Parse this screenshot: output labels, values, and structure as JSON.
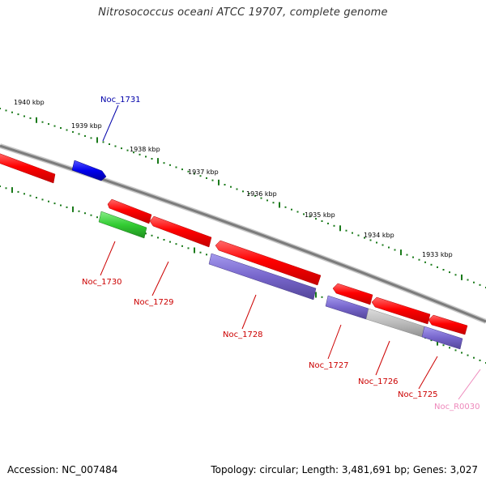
{
  "title": "Nitrosococcus oceani ATCC 19707, complete genome",
  "footer": {
    "accession": "Accession: NC_007484",
    "summary": "Topology: circular; Length: 3,481,691 bp; Genes: 3,027"
  },
  "colors": {
    "backbone": "#808080",
    "tick": "#1a7a1a",
    "cds": "#ff0000",
    "cds_edge": "#b00000",
    "forward_highlight": "#0000ee",
    "rna": "#33cc33",
    "cog": "#7766cc",
    "pseudo": "#bbbbbb",
    "label_red": "#cc0000",
    "label_blue": "#0000aa",
    "label_pink": "#ee88bb"
  },
  "scale_labels": [
    "1940 kbp",
    "1939 kbp",
    "1938 kbp",
    "1937 kbp",
    "1936 kbp",
    "1935 kbp",
    "1934 kbp",
    "1933 kbp"
  ],
  "features": [
    {
      "name": "Noc_1731",
      "type": "cds",
      "strand": "+",
      "color": "blue"
    },
    {
      "name": "Noc_1730",
      "type": "rna",
      "strand": "-",
      "color": "red"
    },
    {
      "name": "Noc_1729",
      "type": "cds",
      "strand": "-",
      "color": "red"
    },
    {
      "name": "Noc_1728",
      "type": "cds",
      "strand": "-",
      "color": "red"
    },
    {
      "name": "Noc_1727",
      "type": "cds",
      "strand": "-",
      "color": "red"
    },
    {
      "name": "Noc_1726",
      "type": "cds",
      "strand": "-",
      "color": "red"
    },
    {
      "name": "Noc_1725",
      "type": "cds",
      "strand": "-",
      "color": "red"
    },
    {
      "name": "Noc_R0030",
      "type": "rna",
      "strand": "-",
      "color": "pink"
    }
  ]
}
